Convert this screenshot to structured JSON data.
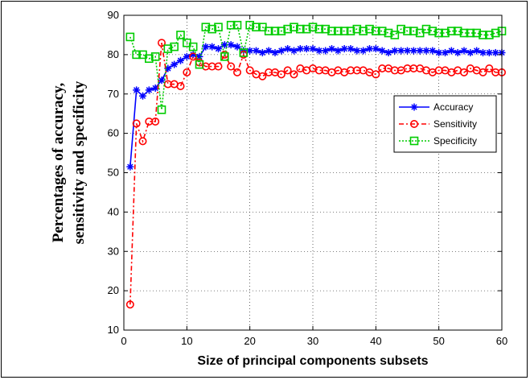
{
  "chart_data": {
    "type": "line",
    "xlabel": "Size of principal components subsets",
    "ylabel_lines": [
      "Percentages  of  accuracy,",
      "sensitivity and specificity"
    ],
    "xlim": [
      0,
      60
    ],
    "ylim": [
      10,
      90
    ],
    "xticks": [
      0,
      10,
      20,
      30,
      40,
      50,
      60
    ],
    "yticks": [
      10,
      20,
      30,
      40,
      50,
      60,
      70,
      80,
      90
    ],
    "grid": "dotted",
    "legend_position": "right, upper-middle",
    "x": [
      1,
      2,
      3,
      4,
      5,
      6,
      7,
      8,
      9,
      10,
      11,
      12,
      13,
      14,
      15,
      16,
      17,
      18,
      19,
      20,
      21,
      22,
      23,
      24,
      25,
      26,
      27,
      28,
      29,
      30,
      31,
      32,
      33,
      34,
      35,
      36,
      37,
      38,
      39,
      40,
      41,
      42,
      43,
      44,
      45,
      46,
      47,
      48,
      49,
      50,
      51,
      52,
      53,
      54,
      55,
      56,
      57,
      58,
      59,
      60
    ],
    "series": [
      {
        "name": "Accuracy",
        "color": "#0000ff",
        "dash": "",
        "marker": "star",
        "values": [
          51.5,
          71,
          69.5,
          71,
          71.5,
          73.5,
          76.5,
          77.5,
          78.5,
          79.5,
          80,
          79.5,
          82,
          82,
          81.5,
          82.5,
          82.5,
          82,
          81,
          81,
          81,
          80.5,
          81,
          80.5,
          81,
          81.5,
          81,
          81.5,
          81.5,
          81.5,
          81,
          81,
          81.5,
          81,
          81.5,
          81.5,
          81,
          81,
          81.5,
          81.5,
          81,
          80.5,
          81,
          81,
          81,
          81,
          81,
          81,
          81,
          80.5,
          80.5,
          81,
          80.5,
          81,
          80.5,
          81,
          80.5,
          80.5,
          80.5,
          80.5
        ]
      },
      {
        "name": "Sensitivity",
        "color": "#ff0000",
        "dash": "6,3,2,3",
        "marker": "circle",
        "values": [
          16.5,
          62.5,
          58,
          63,
          63,
          83,
          72.5,
          72.5,
          72,
          75.5,
          79.5,
          78,
          77,
          77,
          77,
          80,
          77,
          75.5,
          80,
          76,
          75,
          74.5,
          75.5,
          75.5,
          75,
          76,
          75,
          76.5,
          76,
          76.5,
          76,
          76,
          75.5,
          76,
          75.5,
          76,
          76,
          76,
          75.5,
          75,
          76.5,
          76.5,
          76,
          76,
          76.5,
          76.5,
          76.5,
          76,
          75.5,
          76,
          76,
          75.5,
          76,
          75.5,
          76.5,
          76,
          75.5,
          76.5,
          75.5,
          75.5
        ]
      },
      {
        "name": "Specificity",
        "color": "#00cc00",
        "dash": "2,2",
        "marker": "square",
        "values": [
          84.5,
          80,
          80,
          79,
          79.5,
          66,
          81.5,
          82,
          85,
          83,
          82,
          77.5,
          87,
          86.5,
          87,
          79.5,
          87.5,
          87.5,
          80.5,
          87.5,
          87,
          87,
          86,
          86,
          86,
          86.5,
          87,
          86.5,
          86.5,
          87,
          86.5,
          86.5,
          86,
          86,
          86,
          86,
          86.5,
          86,
          86.5,
          86,
          86,
          85.5,
          85,
          86.5,
          86,
          86,
          85.5,
          86.5,
          86,
          85.5,
          85.5,
          86,
          86,
          85.5,
          85.5,
          85.5,
          85,
          85,
          85.5,
          86
        ]
      }
    ]
  }
}
